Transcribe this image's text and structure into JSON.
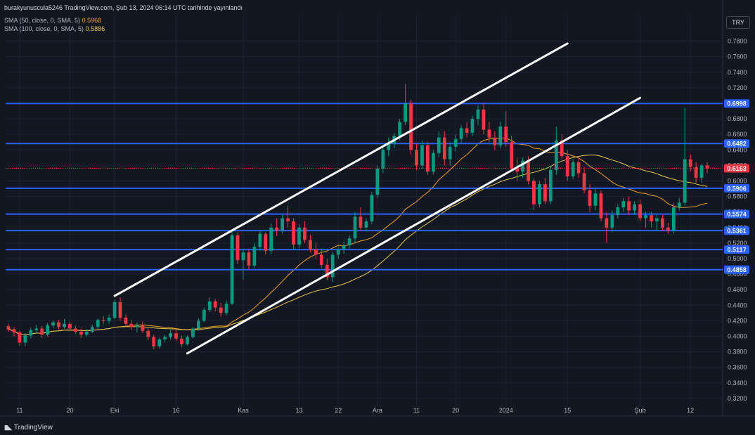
{
  "header": {
    "title": "burakyunuscula5246 TradingView.com, Şub 13, 2024 06:14 UTC tarihinde yayınlandı",
    "sma50_label": "SMA (50, close, 0, SMA, 5)",
    "sma50_value": "0.5968",
    "sma100_label": "SMA (100, close, 0, SMA, 5)",
    "sma100_value": "0.5886"
  },
  "currency": "TRY",
  "branding": {
    "logo_text": "TradingView"
  },
  "colors": {
    "background": "#131722",
    "grid": "#1e2230",
    "up": "#089981",
    "down": "#f23645",
    "level_line": "#2962ff",
    "channel": "#ffffff",
    "sma50": "#f0a020",
    "sma100": "#e8c84a",
    "price_line": "#f23645"
  },
  "chart_data": {
    "type": "candlestick",
    "y_ticks": [
      "0.7800",
      "0.7600",
      "0.7400",
      "0.7200",
      "0.7000",
      "0.6800",
      "0.6600",
      "0.6400",
      "0.6200",
      "0.6000",
      "0.5800",
      "0.5600",
      "0.5400",
      "0.5200",
      "0.5000",
      "0.4800",
      "0.4600",
      "0.4400",
      "0.4200",
      "0.4000",
      "0.3800",
      "0.3600",
      "0.3400",
      "0.3200"
    ],
    "ylim": [
      0.31,
      0.795
    ],
    "x_ticks": [
      {
        "label": "11",
        "i": 2
      },
      {
        "label": "20",
        "i": 11
      },
      {
        "label": "Eki",
        "i": 19
      },
      {
        "label": "16",
        "i": 30
      },
      {
        "label": "Kas",
        "i": 42
      },
      {
        "label": "13",
        "i": 52
      },
      {
        "label": "22",
        "i": 59
      },
      {
        "label": "Ara",
        "i": 66
      },
      {
        "label": "11",
        "i": 73
      },
      {
        "label": "20",
        "i": 80
      },
      {
        "label": "2024",
        "i": 89
      },
      {
        "label": "15",
        "i": 100
      },
      {
        "label": "Şub",
        "i": 113
      },
      {
        "label": "12",
        "i": 122
      }
    ],
    "levels": [
      {
        "value": 0.6998,
        "label": "0.6998"
      },
      {
        "value": 0.6482,
        "label": "0.6482"
      },
      {
        "value": 0.5906,
        "label": "0.5906"
      },
      {
        "value": 0.5574,
        "label": "0.5574"
      },
      {
        "value": 0.5361,
        "label": "0.5361"
      },
      {
        "value": 0.5117,
        "label": "0.5117"
      },
      {
        "value": 0.4858,
        "label": "0.4858"
      }
    ],
    "current_price": {
      "value": 0.6163,
      "label": "0.6163"
    },
    "channel_lines": [
      {
        "from": {
          "i": 19,
          "v": 0.452
        },
        "to": {
          "i": 100,
          "v": 0.777
        }
      },
      {
        "from": {
          "i": 32,
          "v": 0.378
        },
        "to": {
          "i": 113,
          "v": 0.707
        }
      }
    ],
    "candles": [
      [
        0.413,
        0.416,
        0.406,
        0.409
      ],
      [
        0.409,
        0.412,
        0.4,
        0.405
      ],
      [
        0.405,
        0.407,
        0.388,
        0.392
      ],
      [
        0.392,
        0.404,
        0.387,
        0.401
      ],
      [
        0.401,
        0.411,
        0.397,
        0.408
      ],
      [
        0.408,
        0.415,
        0.404,
        0.41
      ],
      [
        0.41,
        0.413,
        0.398,
        0.402
      ],
      [
        0.402,
        0.417,
        0.4,
        0.414
      ],
      [
        0.414,
        0.42,
        0.41,
        0.418
      ],
      [
        0.418,
        0.421,
        0.409,
        0.412
      ],
      [
        0.412,
        0.422,
        0.41,
        0.416
      ],
      [
        0.416,
        0.419,
        0.407,
        0.41
      ],
      [
        0.41,
        0.414,
        0.403,
        0.406
      ],
      [
        0.406,
        0.41,
        0.398,
        0.402
      ],
      [
        0.402,
        0.409,
        0.4,
        0.406
      ],
      [
        0.406,
        0.415,
        0.404,
        0.412
      ],
      [
        0.412,
        0.423,
        0.41,
        0.421
      ],
      [
        0.421,
        0.426,
        0.416,
        0.42
      ],
      [
        0.42,
        0.428,
        0.416,
        0.424
      ],
      [
        0.424,
        0.447,
        0.422,
        0.444
      ],
      [
        0.444,
        0.45,
        0.42,
        0.424
      ],
      [
        0.424,
        0.428,
        0.412,
        0.416
      ],
      [
        0.416,
        0.421,
        0.408,
        0.412
      ],
      [
        0.412,
        0.418,
        0.405,
        0.414
      ],
      [
        0.414,
        0.419,
        0.404,
        0.407
      ],
      [
        0.407,
        0.41,
        0.395,
        0.399
      ],
      [
        0.399,
        0.402,
        0.383,
        0.387
      ],
      [
        0.387,
        0.398,
        0.384,
        0.396
      ],
      [
        0.396,
        0.402,
        0.392,
        0.399
      ],
      [
        0.399,
        0.408,
        0.396,
        0.404
      ],
      [
        0.404,
        0.409,
        0.394,
        0.397
      ],
      [
        0.397,
        0.401,
        0.386,
        0.39
      ],
      [
        0.39,
        0.401,
        0.388,
        0.399
      ],
      [
        0.399,
        0.412,
        0.397,
        0.41
      ],
      [
        0.41,
        0.423,
        0.407,
        0.42
      ],
      [
        0.42,
        0.437,
        0.418,
        0.434
      ],
      [
        0.434,
        0.45,
        0.431,
        0.445
      ],
      [
        0.445,
        0.448,
        0.432,
        0.437
      ],
      [
        0.437,
        0.443,
        0.425,
        0.43
      ],
      [
        0.43,
        0.446,
        0.427,
        0.442
      ],
      [
        0.442,
        0.536,
        0.44,
        0.53
      ],
      [
        0.53,
        0.534,
        0.493,
        0.498
      ],
      [
        0.498,
        0.512,
        0.473,
        0.508
      ],
      [
        0.508,
        0.512,
        0.486,
        0.491
      ],
      [
        0.491,
        0.52,
        0.488,
        0.515
      ],
      [
        0.515,
        0.536,
        0.51,
        0.532
      ],
      [
        0.532,
        0.534,
        0.505,
        0.51
      ],
      [
        0.51,
        0.545,
        0.506,
        0.54
      ],
      [
        0.54,
        0.552,
        0.529,
        0.536
      ],
      [
        0.536,
        0.556,
        0.532,
        0.552
      ],
      [
        0.552,
        0.568,
        0.54,
        0.548
      ],
      [
        0.548,
        0.552,
        0.512,
        0.518
      ],
      [
        0.518,
        0.544,
        0.514,
        0.54
      ],
      [
        0.54,
        0.548,
        0.52,
        0.524
      ],
      [
        0.524,
        0.531,
        0.508,
        0.512
      ],
      [
        0.512,
        0.52,
        0.5,
        0.505
      ],
      [
        0.505,
        0.512,
        0.488,
        0.492
      ],
      [
        0.492,
        0.5,
        0.472,
        0.476
      ],
      [
        0.476,
        0.508,
        0.47,
        0.505
      ],
      [
        0.505,
        0.516,
        0.5,
        0.512
      ],
      [
        0.512,
        0.522,
        0.506,
        0.517
      ],
      [
        0.517,
        0.53,
        0.512,
        0.526
      ],
      [
        0.526,
        0.56,
        0.52,
        0.554
      ],
      [
        0.554,
        0.566,
        0.536,
        0.54
      ],
      [
        0.54,
        0.552,
        0.535,
        0.548
      ],
      [
        0.548,
        0.586,
        0.544,
        0.582
      ],
      [
        0.582,
        0.62,
        0.578,
        0.616
      ],
      [
        0.616,
        0.644,
        0.61,
        0.64
      ],
      [
        0.64,
        0.656,
        0.632,
        0.648
      ],
      [
        0.648,
        0.662,
        0.642,
        0.658
      ],
      [
        0.658,
        0.68,
        0.652,
        0.676
      ],
      [
        0.676,
        0.725,
        0.672,
        0.7
      ],
      [
        0.7,
        0.705,
        0.634,
        0.64
      ],
      [
        0.64,
        0.648,
        0.614,
        0.62
      ],
      [
        0.62,
        0.652,
        0.616,
        0.646
      ],
      [
        0.646,
        0.65,
        0.608,
        0.612
      ],
      [
        0.612,
        0.64,
        0.608,
        0.636
      ],
      [
        0.636,
        0.664,
        0.63,
        0.656
      ],
      [
        0.656,
        0.664,
        0.62,
        0.628
      ],
      [
        0.628,
        0.65,
        0.62,
        0.644
      ],
      [
        0.644,
        0.66,
        0.638,
        0.654
      ],
      [
        0.654,
        0.672,
        0.648,
        0.668
      ],
      [
        0.668,
        0.676,
        0.656,
        0.662
      ],
      [
        0.662,
        0.684,
        0.658,
        0.68
      ],
      [
        0.68,
        0.698,
        0.672,
        0.692
      ],
      [
        0.692,
        0.7,
        0.66,
        0.666
      ],
      [
        0.666,
        0.676,
        0.65,
        0.656
      ],
      [
        0.656,
        0.664,
        0.64,
        0.646
      ],
      [
        0.646,
        0.676,
        0.642,
        0.67
      ],
      [
        0.67,
        0.69,
        0.644,
        0.65
      ],
      [
        0.65,
        0.658,
        0.612,
        0.616
      ],
      [
        0.616,
        0.63,
        0.6,
        0.612
      ],
      [
        0.612,
        0.63,
        0.604,
        0.626
      ],
      [
        0.626,
        0.632,
        0.596,
        0.6
      ],
      [
        0.6,
        0.604,
        0.562,
        0.57
      ],
      [
        0.57,
        0.6,
        0.566,
        0.596
      ],
      [
        0.596,
        0.604,
        0.57,
        0.574
      ],
      [
        0.574,
        0.62,
        0.57,
        0.614
      ],
      [
        0.614,
        0.67,
        0.608,
        0.652
      ],
      [
        0.652,
        0.66,
        0.628,
        0.632
      ],
      [
        0.632,
        0.64,
        0.6,
        0.606
      ],
      [
        0.606,
        0.628,
        0.602,
        0.624
      ],
      [
        0.624,
        0.63,
        0.604,
        0.61
      ],
      [
        0.61,
        0.618,
        0.584,
        0.588
      ],
      [
        0.588,
        0.596,
        0.56,
        0.568
      ],
      [
        0.568,
        0.59,
        0.562,
        0.584
      ],
      [
        0.584,
        0.588,
        0.548,
        0.552
      ],
      [
        0.552,
        0.56,
        0.52,
        0.54
      ],
      [
        0.54,
        0.562,
        0.534,
        0.556
      ],
      [
        0.556,
        0.57,
        0.552,
        0.566
      ],
      [
        0.566,
        0.578,
        0.56,
        0.574
      ],
      [
        0.574,
        0.58,
        0.556,
        0.562
      ],
      [
        0.562,
        0.574,
        0.556,
        0.57
      ],
      [
        0.57,
        0.576,
        0.548,
        0.552
      ],
      [
        0.552,
        0.56,
        0.54,
        0.556
      ],
      [
        0.556,
        0.56,
        0.54,
        0.548
      ],
      [
        0.548,
        0.556,
        0.536,
        0.552
      ],
      [
        0.552,
        0.556,
        0.536,
        0.54
      ],
      [
        0.54,
        0.546,
        0.532,
        0.536
      ],
      [
        0.536,
        0.572,
        0.532,
        0.566
      ],
      [
        0.566,
        0.578,
        0.562,
        0.572
      ],
      [
        0.572,
        0.694,
        0.568,
        0.628
      ],
      [
        0.628,
        0.634,
        0.612,
        0.618
      ],
      [
        0.618,
        0.624,
        0.598,
        0.604
      ],
      [
        0.604,
        0.622,
        0.598,
        0.62
      ],
      [
        0.62,
        0.624,
        0.61,
        0.616
      ]
    ]
  }
}
